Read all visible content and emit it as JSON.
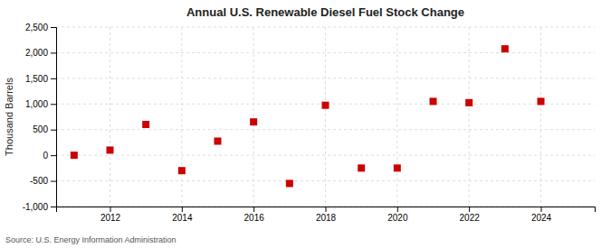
{
  "chart_data": {
    "type": "scatter",
    "title": "Annual U.S. Renewable Diesel Fuel Stock Change",
    "ylabel": "Thousand Barrels",
    "source": "Source: U.S. Energy Information Administration",
    "x": [
      2011,
      2012,
      2013,
      2014,
      2015,
      2016,
      2017,
      2018,
      2019,
      2020,
      2021,
      2022,
      2023,
      2024
    ],
    "values": [
      0,
      100,
      600,
      -300,
      275,
      650,
      -550,
      975,
      -250,
      -250,
      1050,
      1025,
      2075,
      1050
    ],
    "color": "#cc0000",
    "marker": "square",
    "xlim": [
      2010.5,
      2025.5
    ],
    "xticks": [
      2012,
      2014,
      2016,
      2018,
      2020,
      2022,
      2024
    ],
    "ylim": [
      -1000,
      2500
    ],
    "yticks": [
      {
        "value": -1000,
        "label": "-1,000"
      },
      -500,
      0,
      500,
      {
        "value": 1000,
        "label": "1,000"
      },
      {
        "value": 1500,
        "label": "1,500"
      },
      {
        "value": 2000,
        "label": "2,000"
      },
      {
        "value": 2500,
        "label": "2,500"
      }
    ],
    "grid": true
  }
}
